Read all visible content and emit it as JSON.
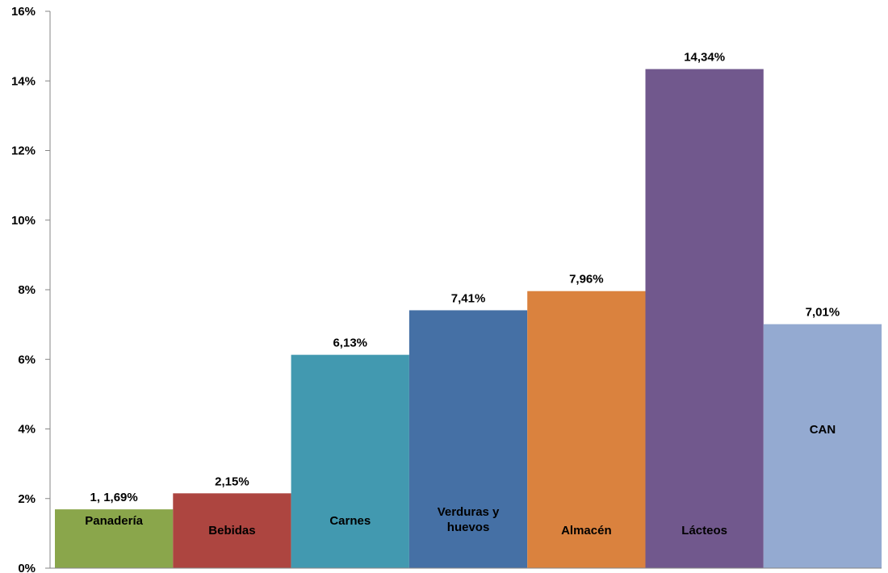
{
  "chart_data": {
    "type": "bar",
    "title": "",
    "xlabel": "",
    "ylabel": "",
    "ylim": [
      0,
      16
    ],
    "y_tick_format": "percent",
    "y_ticks": [
      "0%",
      "2%",
      "4%",
      "6%",
      "8%",
      "10%",
      "12%",
      "14%",
      "16%"
    ],
    "grid": false,
    "categories": [
      {
        "label": "Panadería",
        "label_lines": [
          "Panadería"
        ]
      },
      {
        "label": "Bebidas",
        "label_lines": [
          "Bebidas"
        ]
      },
      {
        "label": "Carnes",
        "label_lines": [
          "Carnes"
        ]
      },
      {
        "label": "Verduras y huevos",
        "label_lines": [
          "Verduras y",
          "huevos"
        ]
      },
      {
        "label": "Almacén",
        "label_lines": [
          "Almacén"
        ]
      },
      {
        "label": "Lácteos",
        "label_lines": [
          "Lácteos"
        ]
      },
      {
        "label": "CAN",
        "label_lines": [
          "CAN"
        ]
      }
    ],
    "values": [
      1.69,
      2.15,
      6.13,
      7.41,
      7.96,
      14.34,
      7.01
    ],
    "data_labels": [
      "1, 1,69%",
      "2,15%",
      "6,13%",
      "7,41%",
      "7,96%",
      "14,34%",
      "7,01%"
    ],
    "colors": [
      "#8aa64b",
      "#ad4540",
      "#4299b0",
      "#4570a5",
      "#da823e",
      "#71588d",
      "#94aad1"
    ]
  }
}
